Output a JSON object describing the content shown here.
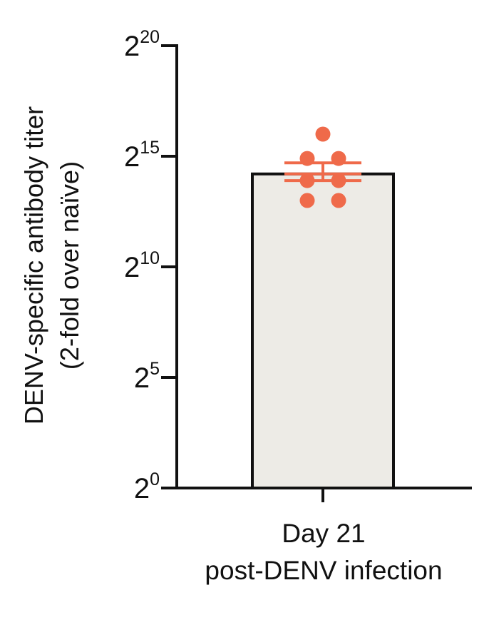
{
  "chart_data": {
    "type": "bar",
    "categories": [
      "Day 21\npost-DENV infection"
    ],
    "category_lines": [
      "Day 21",
      "post-DENV infection"
    ],
    "yscale": "log2",
    "ylim_exponent": [
      0,
      20
    ],
    "yticks": [
      {
        "base": "2",
        "exp": "0"
      },
      {
        "base": "2",
        "exp": "5"
      },
      {
        "base": "2",
        "exp": "10"
      },
      {
        "base": "2",
        "exp": "15"
      },
      {
        "base": "2",
        "exp": "20"
      }
    ],
    "ylabel_line1": "DENV-specific antibody titer",
    "ylabel_line2": "(2-fold over naïve)",
    "bar_value_log2": 14.2,
    "error_log2": [
      13.9,
      14.7
    ],
    "points_log2": [
      16.0,
      14.9,
      14.9,
      13.9,
      13.9,
      13.0,
      13.0
    ],
    "colors": {
      "bar_fill": "#edebe6",
      "bar_stroke": "#111111",
      "points": "#ef6a4a",
      "axis": "#111111"
    }
  }
}
